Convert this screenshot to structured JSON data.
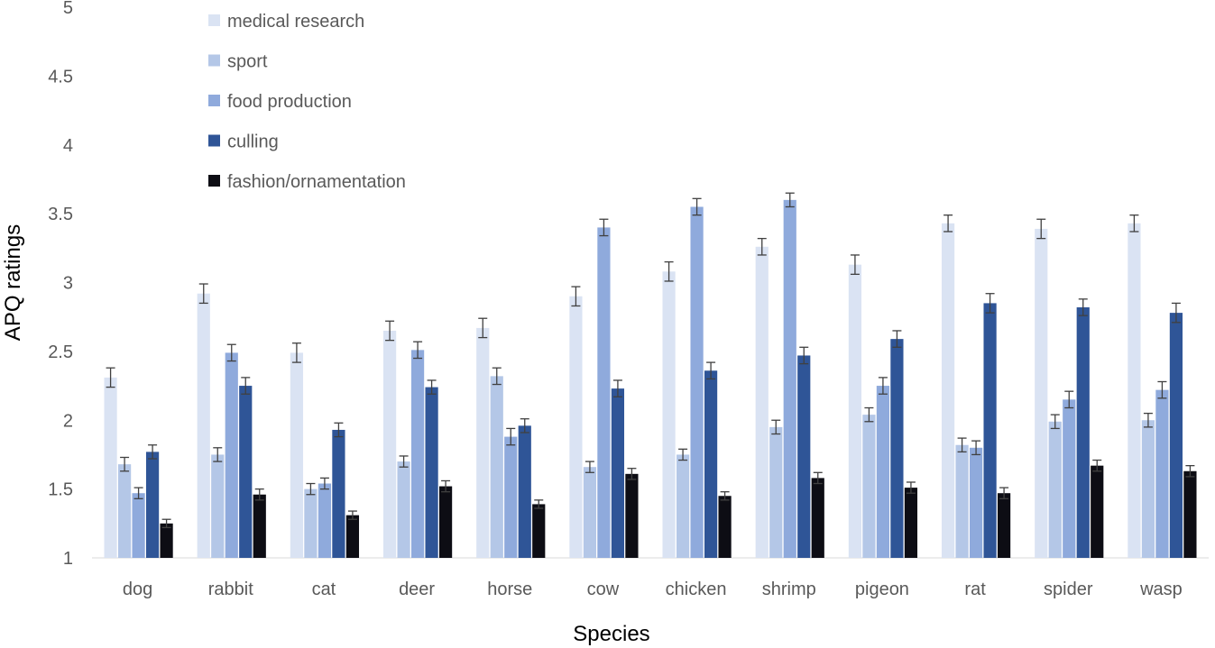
{
  "chart_data": {
    "type": "bar",
    "title": "",
    "xlabel": "Species",
    "ylabel": "APQ ratings",
    "ylim": [
      1,
      5
    ],
    "yticks": [
      "1",
      "1.5",
      "2",
      "2.5",
      "3",
      "3.5",
      "4",
      "4.5",
      "5"
    ],
    "yticks_values": [
      1,
      1.5,
      2,
      2.5,
      3,
      3.5,
      4,
      4.5,
      5
    ],
    "grid": false,
    "legend_position": "top-left",
    "categories": [
      "dog",
      "rabbit",
      "cat",
      "deer",
      "horse",
      "cow",
      "chicken",
      "shrimp",
      "pigeon",
      "rat",
      "spider",
      "wasp"
    ],
    "series": [
      {
        "name": "medical research",
        "color": "#dae3f3",
        "values": [
          2.31,
          2.92,
          2.49,
          2.65,
          2.67,
          2.9,
          3.08,
          3.26,
          3.13,
          3.43,
          3.39,
          3.43
        ],
        "errors": [
          0.07,
          0.07,
          0.07,
          0.07,
          0.07,
          0.07,
          0.07,
          0.06,
          0.07,
          0.06,
          0.07,
          0.06
        ]
      },
      {
        "name": "sport",
        "color": "#b4c7e7",
        "values": [
          1.68,
          1.75,
          1.5,
          1.7,
          2.32,
          1.66,
          1.75,
          1.95,
          2.04,
          1.82,
          1.99,
          2.0
        ],
        "errors": [
          0.05,
          0.05,
          0.04,
          0.04,
          0.06,
          0.04,
          0.04,
          0.05,
          0.05,
          0.05,
          0.05,
          0.05
        ]
      },
      {
        "name": "food production",
        "color": "#8faadc",
        "values": [
          1.47,
          2.49,
          1.54,
          2.51,
          1.88,
          3.4,
          3.55,
          3.6,
          2.25,
          1.8,
          2.15,
          2.22
        ],
        "errors": [
          0.04,
          0.06,
          0.04,
          0.06,
          0.06,
          0.06,
          0.06,
          0.05,
          0.06,
          0.05,
          0.06,
          0.06
        ]
      },
      {
        "name": "culling",
        "color": "#2f5597",
        "values": [
          1.77,
          2.25,
          1.93,
          2.24,
          1.96,
          2.23,
          2.36,
          2.47,
          2.59,
          2.85,
          2.82,
          2.78
        ],
        "errors": [
          0.05,
          0.06,
          0.05,
          0.05,
          0.05,
          0.06,
          0.06,
          0.06,
          0.06,
          0.07,
          0.06,
          0.07
        ]
      },
      {
        "name": "fashion/ornamentation",
        "color": "#0d0d14",
        "values": [
          1.25,
          1.46,
          1.31,
          1.52,
          1.39,
          1.61,
          1.45,
          1.58,
          1.51,
          1.47,
          1.67,
          1.63
        ],
        "errors": [
          0.03,
          0.04,
          0.03,
          0.04,
          0.03,
          0.04,
          0.03,
          0.04,
          0.04,
          0.04,
          0.04,
          0.04
        ]
      }
    ]
  }
}
